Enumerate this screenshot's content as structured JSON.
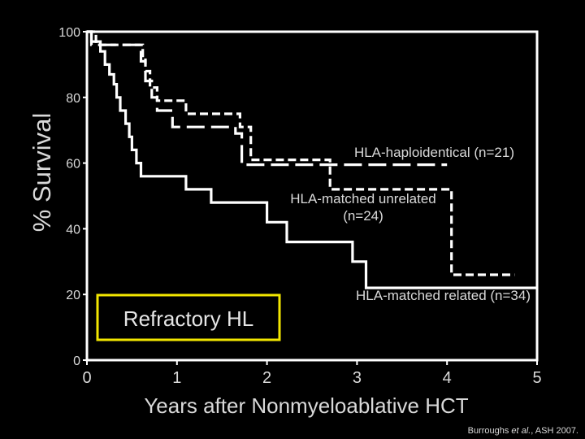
{
  "chart_data": {
    "type": "line",
    "subtype": "kaplan-meier step curves",
    "ylabel": "% Survival",
    "xlabel": "Years after Nonmyeloablative HCT",
    "xlim": [
      0,
      5
    ],
    "ylim": [
      0,
      100
    ],
    "x_ticks": [
      "0",
      "1",
      "2",
      "3",
      "4",
      "5"
    ],
    "y_ticks": [
      "0",
      "20",
      "40",
      "60",
      "80",
      "100"
    ],
    "grid": false,
    "inset_label": "Refractory HL",
    "inset_color": "#f2e600",
    "series": [
      {
        "name": "HLA-haploidentical (n=21)",
        "style": "long-dash",
        "label_lines": [
          "HLA-haploidentical (n=21)"
        ],
        "points": [
          [
            0,
            100
          ],
          [
            0.05,
            100
          ],
          [
            0.05,
            96
          ],
          [
            0.6,
            96
          ],
          [
            0.6,
            91
          ],
          [
            0.65,
            91
          ],
          [
            0.65,
            85
          ],
          [
            0.72,
            85
          ],
          [
            0.72,
            80
          ],
          [
            0.78,
            80
          ],
          [
            0.78,
            76
          ],
          [
            0.95,
            76
          ],
          [
            0.95,
            71
          ],
          [
            1.65,
            71
          ],
          [
            1.65,
            69
          ],
          [
            1.72,
            69
          ],
          [
            1.72,
            59.5
          ],
          [
            4.0,
            59.5
          ]
        ]
      },
      {
        "name": "HLA-matched unrelated (n=24)",
        "style": "short-dash",
        "label_lines": [
          "HLA-matched unrelated",
          "(n=24)"
        ],
        "points": [
          [
            0,
            100
          ],
          [
            0.1,
            100
          ],
          [
            0.1,
            96
          ],
          [
            0.62,
            96
          ],
          [
            0.62,
            92
          ],
          [
            0.65,
            92
          ],
          [
            0.65,
            88
          ],
          [
            0.7,
            88
          ],
          [
            0.7,
            83
          ],
          [
            0.78,
            83
          ],
          [
            0.78,
            79
          ],
          [
            1.1,
            79
          ],
          [
            1.1,
            75
          ],
          [
            1.7,
            75
          ],
          [
            1.7,
            71
          ],
          [
            1.82,
            71
          ],
          [
            1.82,
            61
          ],
          [
            2.7,
            61
          ],
          [
            2.7,
            52
          ],
          [
            4.05,
            52
          ],
          [
            4.05,
            26
          ],
          [
            4.75,
            26
          ]
        ]
      },
      {
        "name": "HLA-matched related (n=34)",
        "style": "solid",
        "label_lines": [
          "HLA-matched related (n=34)"
        ],
        "points": [
          [
            0,
            100
          ],
          [
            0.05,
            100
          ],
          [
            0.05,
            97
          ],
          [
            0.15,
            97
          ],
          [
            0.15,
            94
          ],
          [
            0.2,
            94
          ],
          [
            0.2,
            90
          ],
          [
            0.25,
            90
          ],
          [
            0.25,
            87
          ],
          [
            0.3,
            87
          ],
          [
            0.3,
            84
          ],
          [
            0.33,
            84
          ],
          [
            0.33,
            80
          ],
          [
            0.37,
            80
          ],
          [
            0.37,
            76
          ],
          [
            0.43,
            76
          ],
          [
            0.43,
            72
          ],
          [
            0.47,
            72
          ],
          [
            0.47,
            68
          ],
          [
            0.5,
            68
          ],
          [
            0.5,
            64
          ],
          [
            0.55,
            64
          ],
          [
            0.55,
            60
          ],
          [
            0.6,
            60
          ],
          [
            0.6,
            56
          ],
          [
            1.1,
            56
          ],
          [
            1.1,
            52
          ],
          [
            1.38,
            52
          ],
          [
            1.38,
            48
          ],
          [
            2.0,
            48
          ],
          [
            2.0,
            42
          ],
          [
            2.22,
            42
          ],
          [
            2.22,
            36
          ],
          [
            2.95,
            36
          ],
          [
            2.95,
            30
          ],
          [
            3.1,
            30
          ],
          [
            3.1,
            22
          ],
          [
            5.0,
            22
          ]
        ]
      }
    ]
  },
  "citation": {
    "author": "Burroughs ",
    "etal": "et al.",
    "source": ", ASH 2007."
  }
}
